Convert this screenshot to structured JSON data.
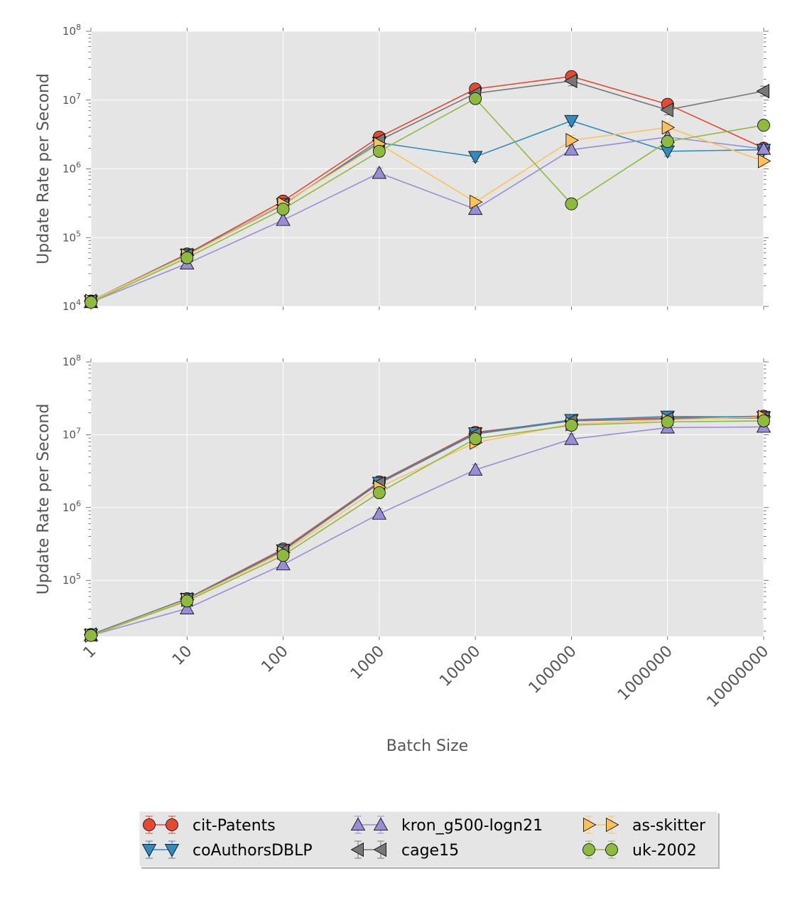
{
  "chart_data": [
    {
      "type": "line",
      "yscale": "log",
      "xscale": "log",
      "title": "",
      "xlabel": "",
      "ylabel": "Update Rate per Second",
      "ylim": [
        10000,
        100000000
      ],
      "grid": true,
      "y_ticks": [
        {
          "value": 10000,
          "base": "10",
          "exp": "4"
        },
        {
          "value": 100000,
          "base": "10",
          "exp": "5"
        },
        {
          "value": 1000000,
          "base": "10",
          "exp": "6"
        },
        {
          "value": 10000000,
          "base": "10",
          "exp": "7"
        },
        {
          "value": 100000000,
          "base": "10",
          "exp": "8"
        }
      ],
      "x": [
        1,
        10,
        100,
        1000,
        10000,
        100000,
        1000000,
        10000000
      ],
      "series": [
        {
          "name": "cit-Patents",
          "values": [
            12000,
            58000,
            340000,
            2900000,
            14500000,
            22000000,
            8700000,
            2000000
          ]
        },
        {
          "name": "coAuthorsDBLP",
          "values": [
            12000,
            57000,
            310000,
            2400000,
            1500000,
            5000000,
            1800000,
            1900000
          ]
        },
        {
          "name": "kron_g500-logn21",
          "values": [
            11500,
            42000,
            180000,
            870000,
            260000,
            1900000,
            2900000,
            1950000
          ]
        },
        {
          "name": "cage15",
          "values": [
            12000,
            56000,
            300000,
            2600000,
            12500000,
            19000000,
            7200000,
            13500000
          ]
        },
        {
          "name": "as-skitter",
          "values": [
            12000,
            55000,
            310000,
            2300000,
            330000,
            2600000,
            4000000,
            1300000
          ]
        },
        {
          "name": "uk-2002",
          "values": [
            11500,
            51000,
            260000,
            1800000,
            10500000,
            310000,
            2500000,
            4300000
          ]
        }
      ]
    },
    {
      "type": "line",
      "yscale": "log",
      "xscale": "log",
      "title": "",
      "xlabel": "Batch Size",
      "ylabel": "Update Rate per Second",
      "ylim": [
        17000,
        100000000
      ],
      "grid": true,
      "y_ticks": [
        {
          "value": 100000,
          "base": "10",
          "exp": "5"
        },
        {
          "value": 1000000,
          "base": "10",
          "exp": "6"
        },
        {
          "value": 10000000,
          "base": "10",
          "exp": "7"
        },
        {
          "value": 100000000,
          "base": "10",
          "exp": "8"
        }
      ],
      "x": [
        1,
        10,
        100,
        1000,
        10000,
        100000,
        1000000,
        10000000
      ],
      "x_tick_labels": [
        "1",
        "10",
        "100",
        "1000",
        "10000",
        "100000",
        "1000000",
        "10000000"
      ],
      "series": [
        {
          "name": "cit-Patents",
          "values": [
            18000,
            56000,
            270000,
            2250000,
            10800000,
            15500000,
            17000000,
            18000000
          ]
        },
        {
          "name": "coAuthorsDBLP",
          "values": [
            18000,
            56000,
            260000,
            2200000,
            10500000,
            16000000,
            17800000,
            17500000
          ]
        },
        {
          "name": "kron_g500-logn21",
          "values": [
            17500,
            41000,
            165000,
            820000,
            3300000,
            8700000,
            12500000,
            12800000
          ]
        },
        {
          "name": "cage15",
          "values": [
            18000,
            55000,
            255000,
            2150000,
            10200000,
            15500000,
            16500000,
            17000000
          ]
        },
        {
          "name": "as-skitter",
          "values": [
            17500,
            54000,
            240000,
            1900000,
            7800000,
            14000000,
            16000000,
            17500000
          ]
        },
        {
          "name": "uk-2002",
          "values": [
            17500,
            52000,
            220000,
            1600000,
            8800000,
            13500000,
            15000000,
            15500000
          ]
        }
      ]
    }
  ],
  "legend": {
    "entries": [
      {
        "name": "cit-Patents",
        "color": "#e24a33",
        "marker": "circle"
      },
      {
        "name": "kron_g500-logn21",
        "color": "#988ed5",
        "marker": "triangle-up"
      },
      {
        "name": "as-skitter",
        "color": "#fbc15e",
        "marker": "triangle-right"
      },
      {
        "name": "coAuthorsDBLP",
        "color": "#348abd",
        "marker": "triangle-down"
      },
      {
        "name": "cage15",
        "color": "#777777",
        "marker": "triangle-left"
      },
      {
        "name": "uk-2002",
        "color": "#8eba42",
        "marker": "circle"
      }
    ]
  },
  "colors": {
    "cit-Patents": "#e24a33",
    "coAuthorsDBLP": "#348abd",
    "kron_g500-logn21": "#988ed5",
    "cage15": "#777777",
    "as-skitter": "#fbc15e",
    "uk-2002": "#8eba42",
    "plot_bg": "#e5e5e5",
    "grid": "#ffffff"
  }
}
